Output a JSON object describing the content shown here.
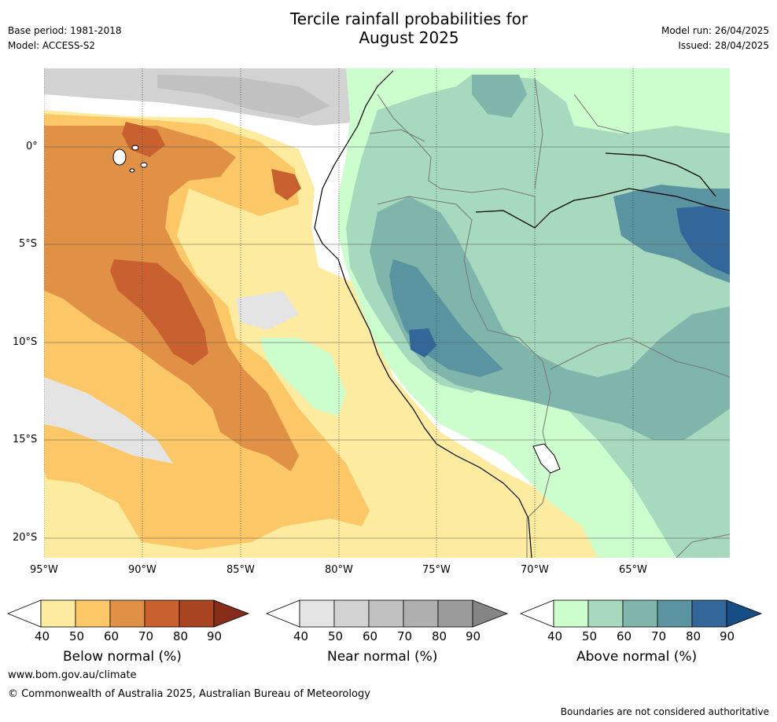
{
  "header": {
    "title_line1": "Tercile rainfall probabilities for",
    "title_line2": "August 2025",
    "base_period": "Base period: 1981-2018",
    "model": "Model: ACCESS-S2",
    "model_run": "Model run: 26/04/2025",
    "issued": "Issued: 28/04/2025"
  },
  "map": {
    "lat_ticks": [
      "0°",
      "5°S",
      "10°S",
      "15°S",
      "20°S"
    ],
    "lon_ticks": [
      "95°W",
      "90°W",
      "85°W",
      "80°W",
      "75°W",
      "70°W",
      "65°W"
    ],
    "colors": {
      "below": [
        "#fdeba0",
        "#fcc867",
        "#e09146",
        "#c8612f",
        "#a84421",
        "#862c18"
      ],
      "near": [
        "#e4e4e4",
        "#d2d2d2",
        "#c1c1c1",
        "#afafaf",
        "#9b9b9b",
        "#848484"
      ],
      "above": [
        "#ccfdcc",
        "#a6d9bd",
        "#7fb5aa",
        "#5b94a1",
        "#336699",
        "#154e85"
      ]
    }
  },
  "colorbars": {
    "below": {
      "label": "Below normal (%)",
      "ticks": [
        "40",
        "50",
        "60",
        "70",
        "80",
        "90"
      ]
    },
    "near": {
      "label": "Near normal (%)",
      "ticks": [
        "40",
        "50",
        "60",
        "70",
        "80",
        "90"
      ]
    },
    "above": {
      "label": "Above normal (%)",
      "ticks": [
        "40",
        "50",
        "60",
        "70",
        "80",
        "90"
      ]
    }
  },
  "footer": {
    "url": "www.bom.gov.au/climate",
    "copyright": "© Commonwealth of Australia 2025, Australian Bureau of Meteorology",
    "disclaimer": "Boundaries are not considered authoritative"
  }
}
